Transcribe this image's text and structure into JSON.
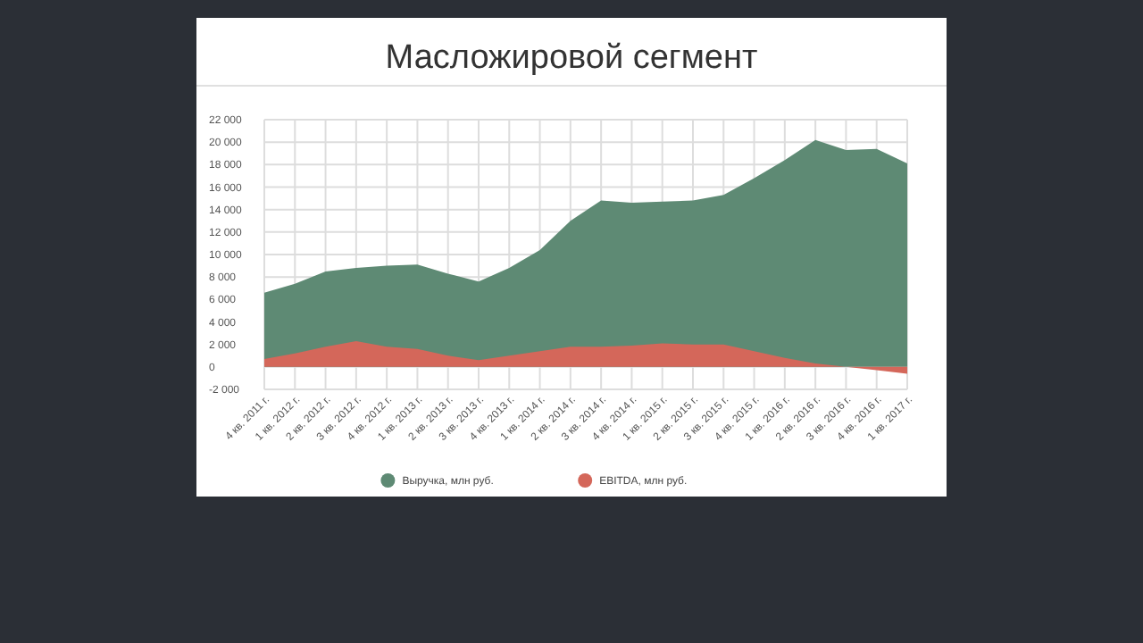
{
  "chart_data": {
    "type": "area",
    "title": "Масложировой сегмент",
    "categories": [
      "4 кв. 2011 г.",
      "1 кв. 2012 г.",
      "2 кв. 2012 г.",
      "3 кв. 2012 г.",
      "4 кв. 2012 г.",
      "1 кв. 2013 г.",
      "2 кв. 2013 г.",
      "3 кв. 2013 г.",
      "4 кв. 2013 г.",
      "1 кв. 2014 г.",
      "2 кв. 2014 г.",
      "3 кв. 2014 г.",
      "4 кв. 2014 г.",
      "1 кв. 2015 г.",
      "2 кв. 2015 г.",
      "3 кв. 2015 г.",
      "4 кв. 2015 г.",
      "1 кв. 2016 г.",
      "2 кв. 2016 г.",
      "3 кв. 2016 г.",
      "4 кв. 2016 г.",
      "1 кв. 2017 г."
    ],
    "series": [
      {
        "name": "Выручка, млн руб.",
        "color": "#5e8a74",
        "values": [
          6600,
          7400,
          8500,
          8800,
          9000,
          9100,
          8300,
          7600,
          8800,
          10400,
          13000,
          14800,
          14600,
          14700,
          14800,
          15300,
          16800,
          18400,
          20200,
          19300,
          19400,
          18100
        ]
      },
      {
        "name": "EBITDA, млн руб.",
        "color": "#d4675a",
        "values": [
          700,
          1200,
          1800,
          2300,
          1800,
          1600,
          1000,
          600,
          1000,
          1400,
          1800,
          1800,
          1900,
          2100,
          2000,
          2000,
          1400,
          800,
          300,
          0,
          -300,
          -600
        ]
      }
    ],
    "ylim": [
      -2000,
      22000
    ],
    "yticks": [
      {
        "value": -2000,
        "label": "-2 000"
      },
      0,
      {
        "value": 2000,
        "label": "2 000"
      },
      {
        "value": 4000,
        "label": "4 000"
      },
      {
        "value": 6000,
        "label": "6 000"
      },
      {
        "value": 8000,
        "label": "8 000"
      },
      {
        "value": 10000,
        "label": "10 000"
      },
      {
        "value": 12000,
        "label": "12 000"
      },
      {
        "value": 14000,
        "label": "14 000"
      },
      {
        "value": 16000,
        "label": "16 000"
      },
      {
        "value": 18000,
        "label": "18 000"
      },
      {
        "value": 20000,
        "label": "20 000"
      },
      {
        "value": 22000,
        "label": "22 000"
      }
    ],
    "grid": true,
    "legend": "bottom"
  }
}
